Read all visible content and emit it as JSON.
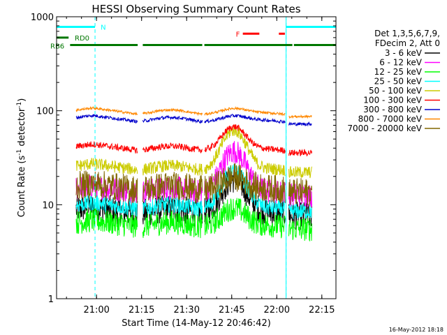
{
  "chart_data": {
    "type": "line",
    "title": "HESSI Observing Summary Count Rates",
    "xlabel": "Start Time (14-May-12 20:46:42)",
    "ylabel_main": "Count Rate (s",
    "ylabel_sup1": "-1",
    "ylabel_mid": " detector",
    "ylabel_sup2": "-1",
    "ylabel_end": ")",
    "yscale": "log",
    "ylim": [
      1,
      1000
    ],
    "xlim_minutes": [
      0,
      93
    ],
    "x_ticks": [
      {
        "label": "21:00",
        "min": 13.3
      },
      {
        "label": "21:15",
        "min": 28.3
      },
      {
        "label": "21:30",
        "min": 43.3
      },
      {
        "label": "21:45",
        "min": 58.3
      },
      {
        "label": "22:00",
        "min": 73.3
      },
      {
        "label": "22:15",
        "min": 88.3
      }
    ],
    "y_ticks": [
      {
        "label": "1",
        "value": 1
      },
      {
        "label": "10",
        "value": 10
      },
      {
        "label": "100",
        "value": 100
      },
      {
        "label": "1000",
        "value": 1000
      }
    ],
    "legend_header": [
      "Det 1,3,5,6,7,9,",
      "FDecim 2, Att 0"
    ],
    "series": [
      {
        "name": "3 - 6 keV",
        "color": "#000000",
        "base": 9,
        "noise": 0.35,
        "peak": 2.2
      },
      {
        "name": "6 - 12 keV",
        "color": "#ff00ff",
        "base": 15,
        "noise": 0.3,
        "peak": 2.6
      },
      {
        "name": "12 - 25 keV",
        "color": "#00ff00",
        "base": 6.5,
        "noise": 0.3,
        "peak": 1.5
      },
      {
        "name": "25 - 50 keV",
        "color": "#00ffff",
        "base": 10,
        "noise": 0.2,
        "peak": 2.4
      },
      {
        "name": "50 - 100 keV",
        "color": "#cccc00",
        "base": 26,
        "noise": 0.15,
        "peak": 2.5
      },
      {
        "name": "100 - 300 keV",
        "color": "#ff0000",
        "base": 42,
        "noise": 0.08,
        "peak": 1.7
      },
      {
        "name": "300 - 800 keV",
        "color": "#0000cc",
        "base": 85,
        "noise": 0.04,
        "peak": 1.1
      },
      {
        "name": "800 - 7000 keV",
        "color": "#ff8800",
        "base": 102,
        "noise": 0.03,
        "peak": 1.1
      },
      {
        "name": "7000 - 20000 keV",
        "color": "#806600",
        "base": 16,
        "noise": 0.35,
        "peak": 1.3
      }
    ],
    "flags": [
      {
        "label": "N",
        "color": "#00ffff",
        "value": 780,
        "segments": [
          [
            0,
            12.8
          ],
          [
            76.4,
            93
          ]
        ]
      },
      {
        "label": "F",
        "color": "#ff0000",
        "value": 660,
        "segments": [
          [
            62,
            67.5
          ],
          [
            74,
            76
          ]
        ]
      },
      {
        "label": "RD0",
        "color": "#007700",
        "value": 600,
        "segments": [
          [
            0,
            4
          ]
        ]
      },
      {
        "label": "RB6",
        "color": "#007700",
        "value": 500,
        "segments": [
          [
            4.5,
            27
          ],
          [
            28.7,
            48.5
          ],
          [
            49.2,
            78.5
          ],
          [
            79,
            93
          ]
        ]
      }
    ],
    "saa_lines": [
      0,
      76.4
    ],
    "dashed_lines": [
      12.8,
      76.4,
      93
    ]
  },
  "footer": {
    "date_stamp": "16-May-2012 18:18"
  }
}
